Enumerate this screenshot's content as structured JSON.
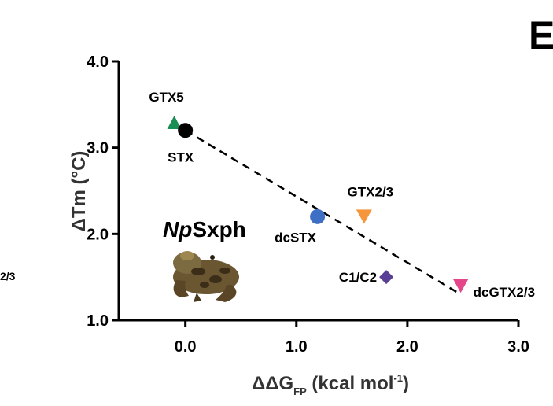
{
  "figure": {
    "panel_letter": "E",
    "side_fragment": "2/3",
    "species_label": {
      "italic": "Np",
      "regular": "Sxph"
    }
  },
  "chart_data": {
    "type": "scatter",
    "title": "",
    "xlabel": "ΔΔG",
    "xlabel_subscript": "FP",
    "xlabel_units": " (kcal mol",
    "xlabel_units_sup": "-1",
    "xlabel_units_end": ")",
    "ylabel": "ΔTm (°C)",
    "xlim": [
      -0.6,
      3.0
    ],
    "ylim": [
      1.0,
      4.0
    ],
    "xticks": [
      0.0,
      1.0,
      2.0,
      3.0
    ],
    "xtick_labels": [
      "0.0",
      "1.0",
      "2.0",
      "3.0"
    ],
    "yticks": [
      1.0,
      2.0,
      3.0,
      4.0
    ],
    "ytick_labels": [
      "1.0",
      "2.0",
      "3.0",
      "4.0"
    ],
    "grid": false,
    "points": [
      {
        "label": "GTX5",
        "x": -0.1,
        "y": 3.28,
        "marker": "triangle-up",
        "color": "#1a8f55"
      },
      {
        "label": "STX",
        "x": 0.0,
        "y": 3.2,
        "marker": "circle",
        "color": "#000000"
      },
      {
        "label": "dcSTX",
        "x": 1.19,
        "y": 2.2,
        "marker": "circle",
        "color": "#3d6fc4"
      },
      {
        "label": "GTX2/3",
        "x": 1.61,
        "y": 2.2,
        "marker": "triangle-down",
        "color": "#f6963c"
      },
      {
        "label": "C1/C2",
        "x": 1.81,
        "y": 1.5,
        "marker": "diamond",
        "color": "#5a3f96"
      },
      {
        "label": "dcGTX2/3",
        "x": 2.48,
        "y": 1.4,
        "marker": "triangle-down",
        "color": "#e5458a"
      }
    ],
    "fit_line": {
      "x": [
        0.0,
        2.48
      ],
      "y": [
        3.2,
        1.3
      ],
      "style": "dashed",
      "color": "#000000"
    }
  }
}
